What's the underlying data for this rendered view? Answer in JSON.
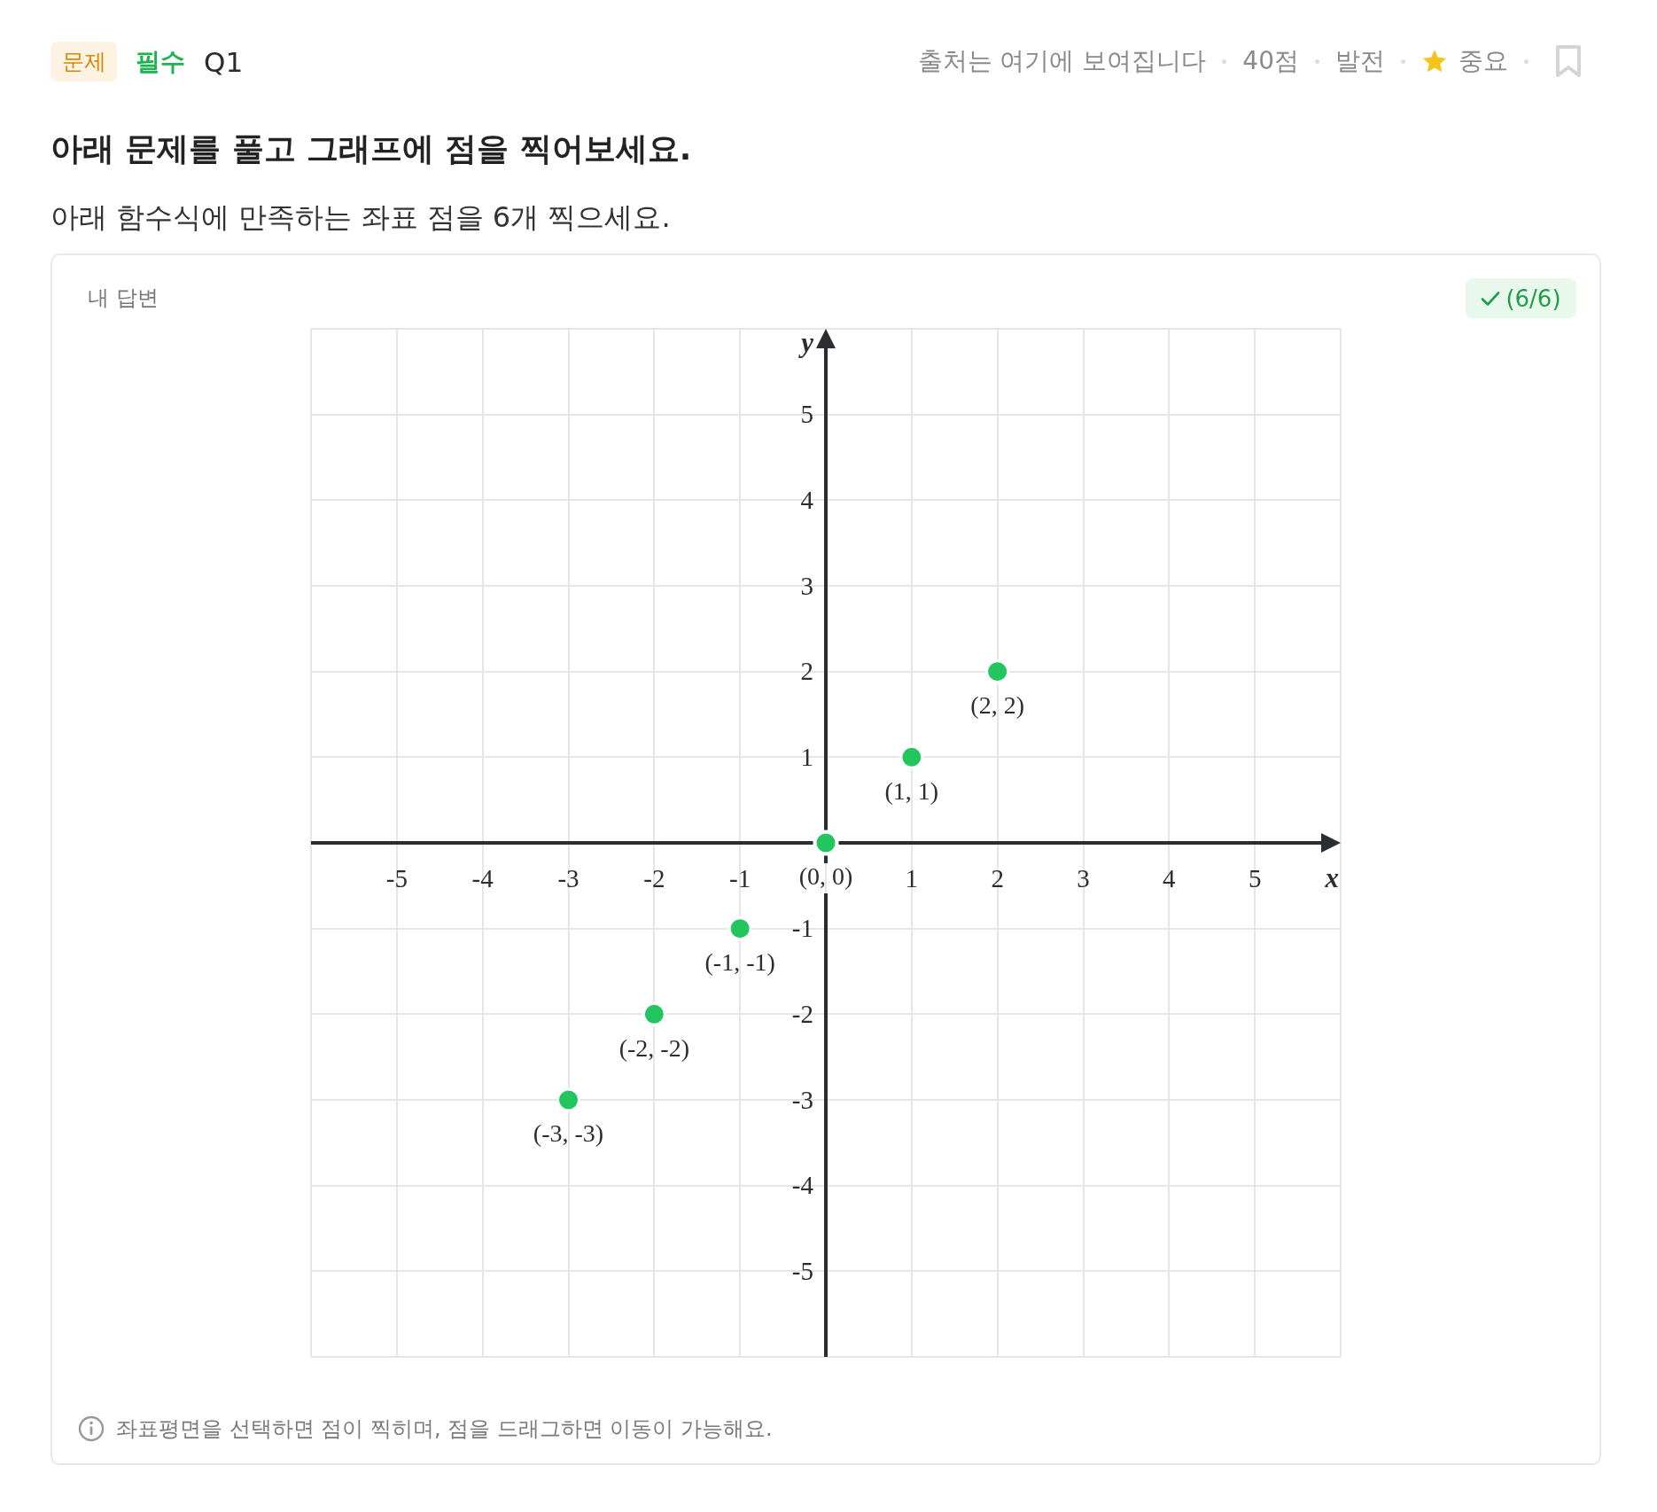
{
  "chart_data": {
    "type": "scatter",
    "title": "아래 문제를 풀고 그래프에 점을 찍어보세요.",
    "subtitle": "아래 함수식에 만족하는 좌표 점을 6개 찍으세요.",
    "xlabel": "x",
    "ylabel": "y",
    "x": [
      -3,
      -2,
      -1,
      0,
      1,
      2
    ],
    "values": [
      -3,
      -2,
      -1,
      0,
      1,
      2
    ],
    "color": "#22c55e",
    "value_labels": [
      "(-3, -3)",
      "(-2, -2)",
      "(-1, -1)",
      "(0, 0)",
      "(1, 1)",
      "(2, 2)"
    ],
    "xlim": [
      -6,
      6
    ],
    "ylim": [
      -6,
      6
    ],
    "xticks": [
      {
        "value": -6,
        "label": null
      },
      -5,
      -4,
      -3,
      -2,
      -1,
      {
        "value": 0,
        "label": null
      },
      1,
      2,
      3,
      4,
      5,
      {
        "value": 6,
        "label": null
      }
    ],
    "yticks": [
      {
        "value": -6,
        "label": null
      },
      -5,
      -4,
      -3,
      -2,
      -1,
      {
        "value": 0,
        "label": null
      },
      1,
      2,
      3,
      4,
      5,
      {
        "value": 6,
        "label": null
      }
    ],
    "grid": true,
    "marker": "circle",
    "annotations": [
      "문제",
      "필수",
      "Q1",
      "출처는 여기에 보여집니다",
      "40점",
      "발전",
      "중요",
      "내 답변",
      "(6/6)",
      "좌표평면을 선택하면 점이 찍히며, 점을 드래그하면 이동이 가능해요."
    ]
  }
}
